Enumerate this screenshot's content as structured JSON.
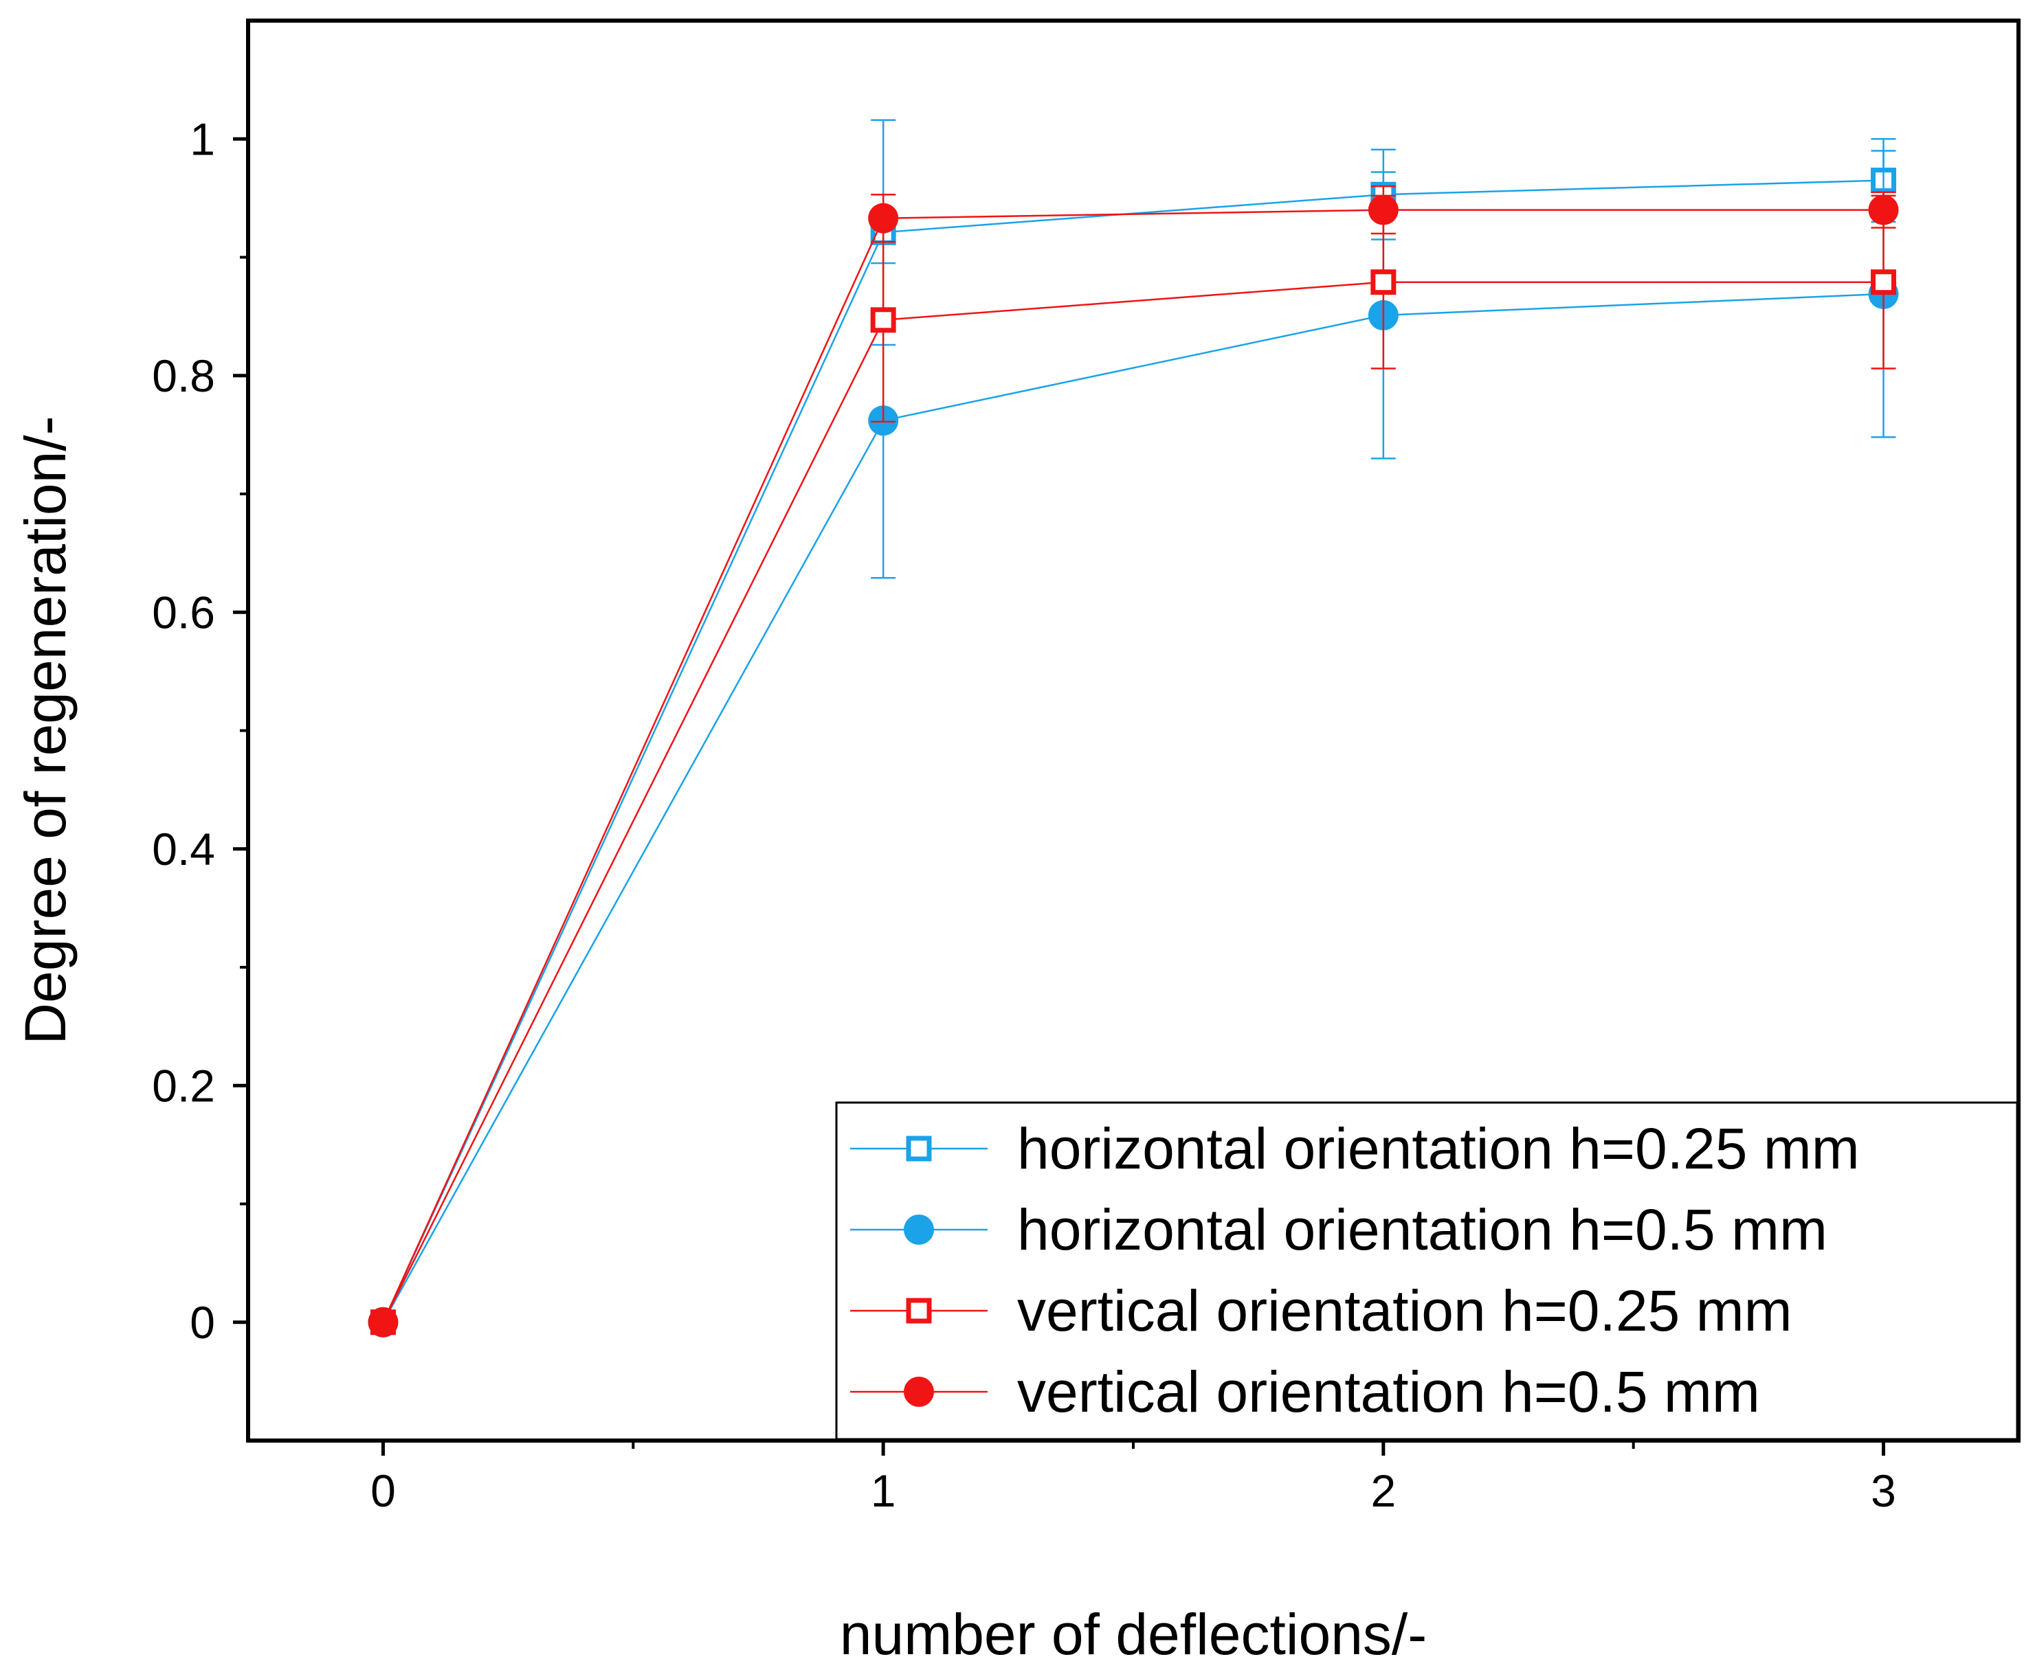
{
  "chart_data": {
    "type": "line",
    "title": "",
    "xlabel": "number of deflections/-",
    "ylabel": "Degree of regeneration/-",
    "xlim": [
      -0.27,
      3.27
    ],
    "ylim": [
      -0.1,
      1.1
    ],
    "x_ticks": [
      0,
      1,
      2,
      3
    ],
    "x_tick_labels": [
      "0",
      "1",
      "2",
      "3"
    ],
    "y_ticks": [
      0,
      0.2,
      0.4,
      0.6,
      0.8,
      1
    ],
    "y_tick_labels": [
      "0",
      "0.2",
      "0.4",
      "0.6",
      "0.8",
      "1"
    ],
    "grid": false,
    "legend_position": "bottom-right",
    "series": [
      {
        "name": "horizontal orientation h=0.25 mm",
        "color": "#1aa3e8",
        "marker": "square-open",
        "x": [
          0,
          1,
          2,
          3
        ],
        "y": [
          0,
          0.921,
          0.953,
          0.965
        ],
        "err": [
          0,
          0.095,
          0.038,
          0.035
        ]
      },
      {
        "name": "horizontal orientation h=0.5 mm",
        "color": "#1aa3e8",
        "marker": "circle-filled",
        "x": [
          0,
          1,
          2,
          3
        ],
        "y": [
          0,
          0.762,
          0.851,
          0.869
        ],
        "err": [
          0,
          0.133,
          0.121,
          0.121
        ]
      },
      {
        "name": "vertical orientation h=0.25 mm",
        "color": "#f01414",
        "marker": "square-open",
        "x": [
          0,
          1,
          2,
          3
        ],
        "y": [
          0,
          0.847,
          0.879,
          0.879
        ],
        "err": [
          0,
          0.086,
          0.073,
          0.073
        ]
      },
      {
        "name": "vertical orientation h=0.5 mm",
        "color": "#f01414",
        "marker": "circle-filled",
        "x": [
          0,
          1,
          2,
          3
        ],
        "y": [
          0,
          0.933,
          0.94,
          0.94
        ],
        "err": [
          0,
          0.02,
          0.02,
          0.015
        ]
      }
    ]
  }
}
